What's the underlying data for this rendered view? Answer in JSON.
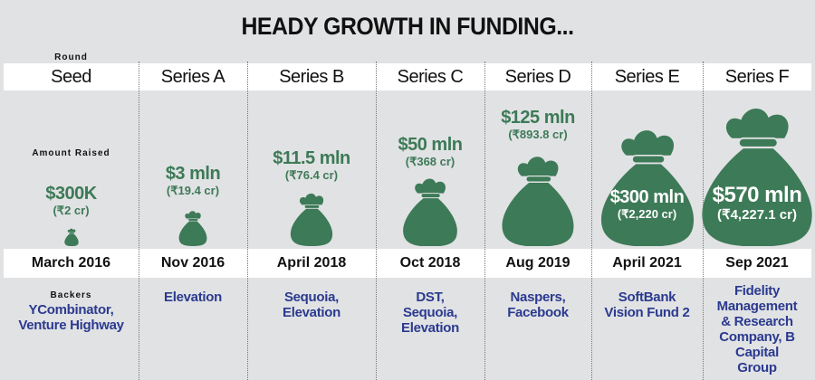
{
  "title": "HEADY GROWTH IN FUNDING...",
  "labels": {
    "round": "Round",
    "amount": "Amount Raised",
    "backers": "Backers"
  },
  "colors": {
    "bag": "#3d7a57",
    "backers": "#2b3a8f",
    "background": "#e1e2e4"
  },
  "chart_data": {
    "type": "bar",
    "title": "HEADY GROWTH IN FUNDING...",
    "categories": [
      "Seed",
      "Series A",
      "Series B",
      "Series C",
      "Series D",
      "Series E",
      "Series F"
    ],
    "values_usd_mln": [
      0.3,
      3,
      11.5,
      50,
      125,
      300,
      570
    ],
    "rounds": [
      {
        "round": "Seed",
        "usd": "$300K",
        "inr": "(₹2 cr)",
        "date": "March 2016",
        "backers": "YCombinator, Venture Highway"
      },
      {
        "round": "Series A",
        "usd": "$3 mln",
        "inr": "(₹19.4 cr)",
        "date": "Nov 2016",
        "backers": "Elevation"
      },
      {
        "round": "Series B",
        "usd": "$11.5 mln",
        "inr": "(₹76.4 cr)",
        "date": "April 2018",
        "backers": "Sequoia, Elevation"
      },
      {
        "round": "Series C",
        "usd": "$50 mln",
        "inr": "(₹368 cr)",
        "date": "Oct 2018",
        "backers": "DST, Sequoia, Elevation"
      },
      {
        "round": "Series D",
        "usd": "$125 mln",
        "inr": "(₹893.8 cr)",
        "date": "Aug 2019",
        "backers": "Naspers, Facebook"
      },
      {
        "round": "Series E",
        "usd": "$300 mln",
        "inr": "(₹2,220 cr)",
        "date": "April 2021",
        "backers": "SoftBank Vision Fund 2"
      },
      {
        "round": "Series F",
        "usd": "$570 mln",
        "inr": "(₹4,227.1 cr)",
        "date": "Sep 2021",
        "backers": "Fidelity Management & Research Company, B Capital Group"
      }
    ]
  }
}
